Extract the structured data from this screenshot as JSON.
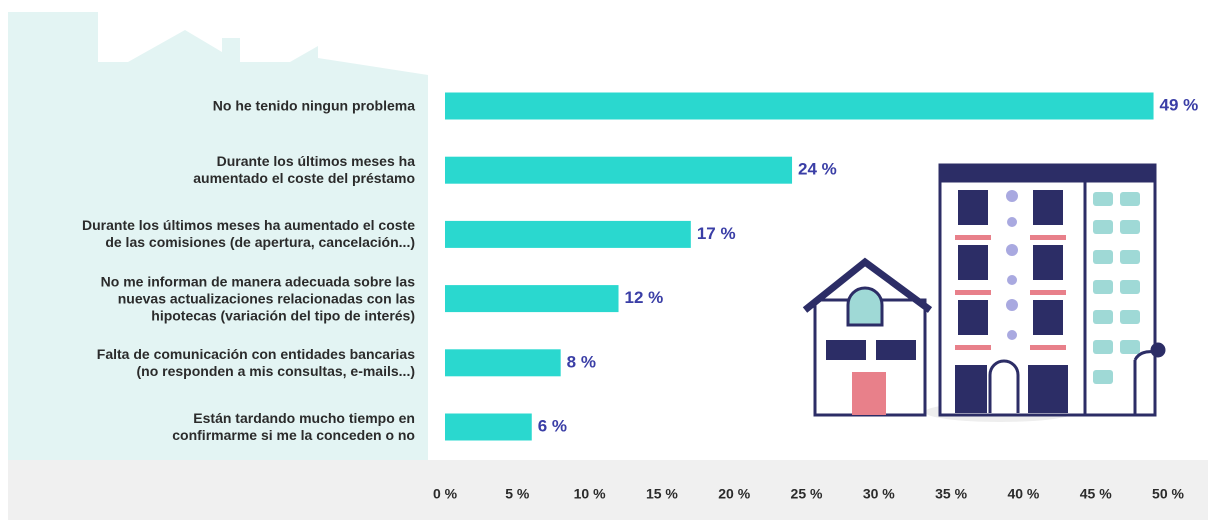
{
  "chart_data": {
    "type": "bar",
    "orientation": "horizontal",
    "categories": [
      "No he tenido ningun problema",
      "Durante los últimos meses ha\naumentado el coste del préstamo",
      "Durante los últimos meses ha aumentado el coste\nde las comisiones (de apertura, cancelación...)",
      "No me informan de manera adecuada sobre las\nnuevas actualizaciones relacionadas con las\nhipotecas (variación del tipo de interés)",
      "Falta de comunicación con entidades bancarias\n(no responden a mis consultas, e-mails...)",
      "Están tardando mucho tiempo en\nconfirmarme si me la conceden o no"
    ],
    "values": [
      49,
      24,
      17,
      12,
      8,
      6
    ],
    "value_labels": [
      "49 %",
      "24 %",
      "17 %",
      "12 %",
      "8 %",
      "6 %"
    ],
    "color": "#2ad8cf",
    "label_color": "#3a3ea6",
    "xlim": [
      0,
      50
    ],
    "xticks": [
      {
        "value": 0,
        "label": "0 %"
      },
      {
        "value": 5,
        "label": "5 %"
      },
      {
        "value": 10,
        "label": "10 %"
      },
      {
        "value": 15,
        "label": "15 %"
      },
      {
        "value": 20,
        "label": "20 %"
      },
      {
        "value": 25,
        "label": "25 %"
      },
      {
        "value": 30,
        "label": "30 %"
      },
      {
        "value": 35,
        "label": "35 %"
      },
      {
        "value": 40,
        "label": "40 %"
      },
      {
        "value": 45,
        "label": "45 %"
      },
      {
        "value": 50,
        "label": "50 %"
      }
    ],
    "grid": false
  }
}
